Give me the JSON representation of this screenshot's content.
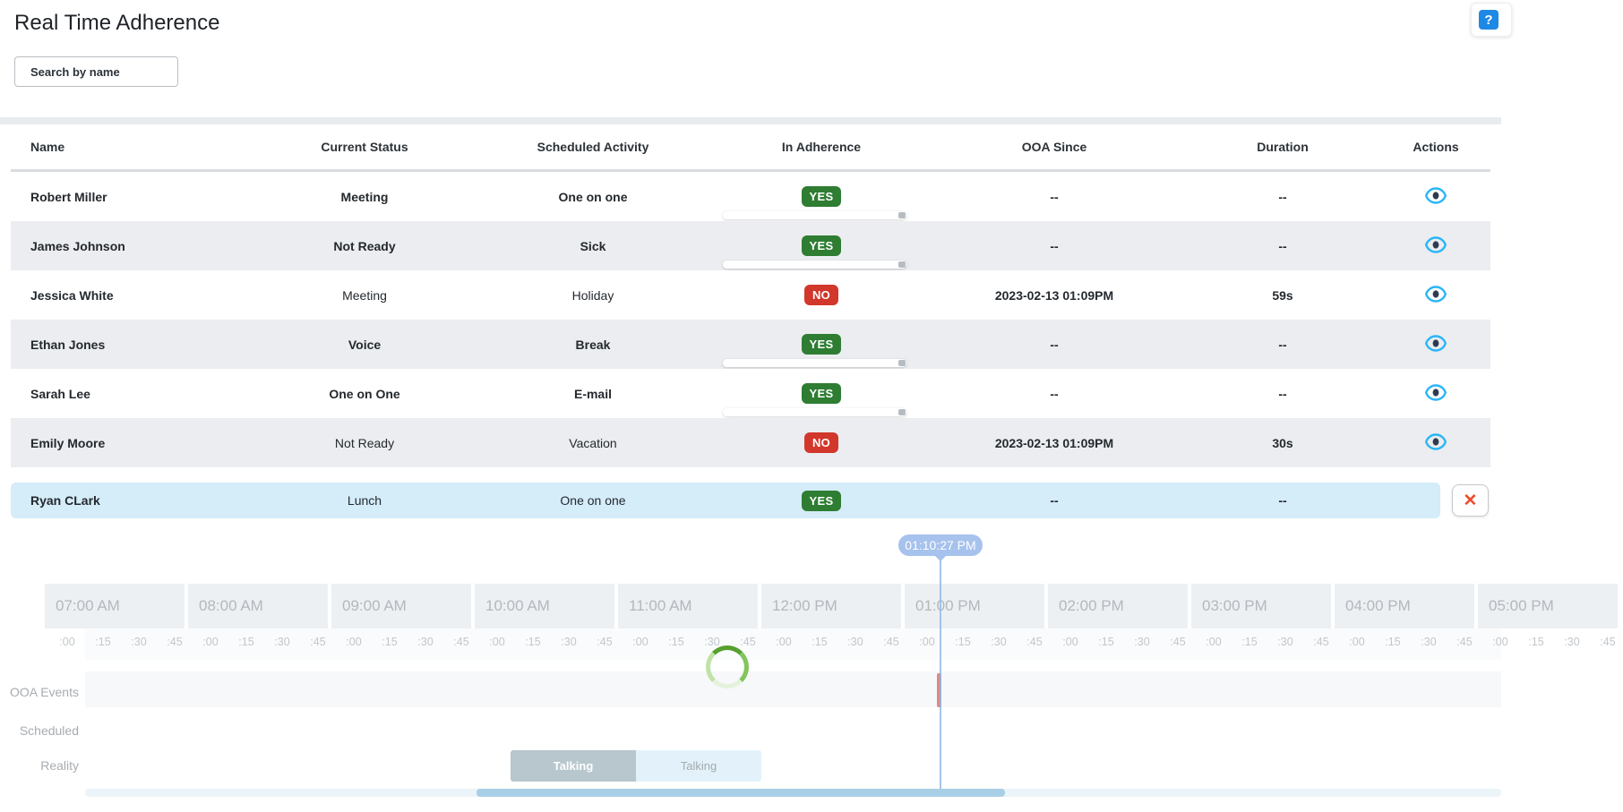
{
  "page": {
    "title": "Real Time Adherence"
  },
  "search": {
    "placeholder": "Search by name"
  },
  "help": {
    "icon": "help-question-icon",
    "glyph": "?"
  },
  "table": {
    "headers": [
      {
        "label": "Name"
      },
      {
        "label": "Current Status"
      },
      {
        "label": "Scheduled Activity"
      },
      {
        "label": "In Adherence"
      },
      {
        "label": "OOA Since"
      },
      {
        "label": "Duration"
      },
      {
        "label": "Actions"
      }
    ],
    "rows": [
      {
        "name": "Robert Miller",
        "status": "Meeting",
        "activity": "One on one",
        "adherence": "YES",
        "ooa_since": "--",
        "duration": "--",
        "emphasized": true,
        "has_slider": true,
        "action": "view"
      },
      {
        "name": "James Johnson",
        "status": "Not Ready",
        "activity": "Sick",
        "adherence": "YES",
        "ooa_since": "--",
        "duration": "--",
        "emphasized": true,
        "has_slider": true,
        "action": "view"
      },
      {
        "name": "Jessica White",
        "status": "Meeting",
        "activity": "Holiday",
        "adherence": "NO",
        "ooa_since": "2023-02-13 01:09PM",
        "duration": "59s",
        "emphasized": false,
        "has_slider": false,
        "action": "view"
      },
      {
        "name": "Ethan Jones",
        "status": "Voice",
        "activity": "Break",
        "adherence": "YES",
        "ooa_since": "--",
        "duration": "--",
        "emphasized": true,
        "has_slider": true,
        "action": "view"
      },
      {
        "name": "Sarah Lee",
        "status": "One on One",
        "activity": "E-mail",
        "adherence": "YES",
        "ooa_since": "--",
        "duration": "--",
        "emphasized": true,
        "has_slider": true,
        "action": "view"
      },
      {
        "name": "Emily Moore",
        "status": "Not Ready",
        "activity": "Vacation",
        "adherence": "NO",
        "ooa_since": "2023-02-13 01:09PM",
        "duration": "30s",
        "emphasized": false,
        "has_slider": false,
        "action": "view"
      }
    ],
    "selected_row": {
      "name": "Ryan CLark",
      "status": "Lunch",
      "activity": "One on one",
      "adherence": "YES",
      "ooa_since": "--",
      "duration": "--"
    },
    "close_label": "✕"
  },
  "timeline": {
    "tooltip_time": "01:10:27 PM",
    "hours": [
      "07:00 AM",
      "08:00 AM",
      "09:00 AM",
      "10:00 AM",
      "11:00 AM",
      "12:00 PM",
      "01:00 PM",
      "02:00 PM",
      "03:00 PM",
      "04:00 PM",
      "05:00 PM"
    ],
    "tick_labels": [
      ":00",
      ":15",
      ":30",
      ":45"
    ],
    "row_labels": [
      "OOA Events",
      "Scheduled",
      "Reality"
    ],
    "reality_bars": [
      {
        "label": "Talking",
        "style": "talking-1"
      },
      {
        "label": "Talking",
        "style": "talking-2"
      }
    ]
  },
  "colors": {
    "adherence_yes": "#2e7d32",
    "adherence_no": "#d2372c",
    "selected_row_bg": "#d5ecf9",
    "eye_icon_blue": "#29b6f6",
    "close_red": "#ee4b2b",
    "tooltip_blue": "#a6c2ed",
    "scrollbar_blue": "#a8cfe5",
    "spinner_green": "#55a02e",
    "ooa_event_red": "#db8c80"
  }
}
